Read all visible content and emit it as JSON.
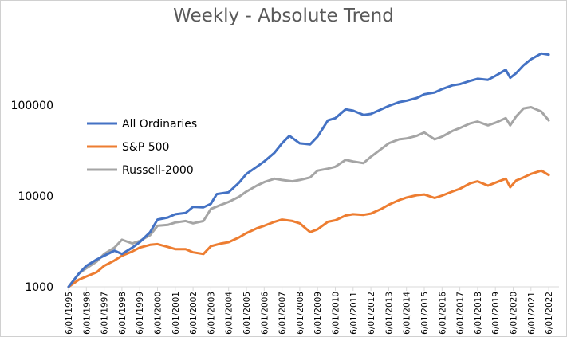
{
  "chart_data": {
    "type": "line",
    "title": "Weekly - Absolute Trend",
    "xlabel": "",
    "ylabel": "",
    "y_scale": "log",
    "ylim": [
      1000,
      400000
    ],
    "y_ticks": [
      {
        "value": 1000,
        "label": "1000"
      },
      {
        "value": 10000,
        "label": "10000"
      },
      {
        "value": 100000,
        "label": "100000"
      }
    ],
    "x_ticks": [
      "6/01/1995",
      "6/01/1996",
      "6/01/1997",
      "6/01/1998",
      "6/01/1999",
      "6/01/2000",
      "6/01/2001",
      "6/01/2002",
      "6/01/2003",
      "6/01/2004",
      "6/01/2005",
      "6/01/2006",
      "6/01/2007",
      "6/01/2008",
      "6/01/2009",
      "6/01/2010",
      "6/01/2011",
      "6/01/2012",
      "6/01/2013",
      "6/01/2014",
      "6/01/2015",
      "6/01/2016",
      "6/01/2017",
      "6/01/2018",
      "6/01/2019",
      "6/01/2020",
      "6/01/2021",
      "6/01/2022"
    ],
    "grid": false,
    "legend_position": "upper-left inside plot",
    "series": [
      {
        "name": "All Ordinaries",
        "color": "#4472c4",
        "points": [
          [
            "1995-06",
            1000
          ],
          [
            "1996-01",
            1400
          ],
          [
            "1996-06",
            1700
          ],
          [
            "1997-01",
            2000
          ],
          [
            "1997-06",
            2200
          ],
          [
            "1998-01",
            2500
          ],
          [
            "1998-06",
            2300
          ],
          [
            "1999-01",
            2700
          ],
          [
            "1999-06",
            3100
          ],
          [
            "2000-01",
            4000
          ],
          [
            "2000-06",
            5500
          ],
          [
            "2001-01",
            5800
          ],
          [
            "2001-06",
            6300
          ],
          [
            "2002-01",
            6500
          ],
          [
            "2002-06",
            7600
          ],
          [
            "2003-01",
            7500
          ],
          [
            "2003-06",
            8200
          ],
          [
            "2003-10",
            10500
          ],
          [
            "2004-06",
            11000
          ],
          [
            "2005-01",
            14000
          ],
          [
            "2005-06",
            17500
          ],
          [
            "2006-01",
            21000
          ],
          [
            "2006-06",
            24000
          ],
          [
            "2007-01",
            30000
          ],
          [
            "2007-06",
            38000
          ],
          [
            "2007-11",
            46000
          ],
          [
            "2008-06",
            38000
          ],
          [
            "2009-01",
            37000
          ],
          [
            "2009-06",
            45000
          ],
          [
            "2010-01",
            68000
          ],
          [
            "2010-06",
            72000
          ],
          [
            "2011-01",
            90000
          ],
          [
            "2011-06",
            87000
          ],
          [
            "2012-01",
            78000
          ],
          [
            "2012-06",
            80000
          ],
          [
            "2013-01",
            90000
          ],
          [
            "2013-06",
            98000
          ],
          [
            "2014-01",
            108000
          ],
          [
            "2014-06",
            112000
          ],
          [
            "2015-01",
            120000
          ],
          [
            "2015-06",
            132000
          ],
          [
            "2016-01",
            138000
          ],
          [
            "2016-06",
            150000
          ],
          [
            "2017-01",
            165000
          ],
          [
            "2017-06",
            170000
          ],
          [
            "2018-01",
            185000
          ],
          [
            "2018-06",
            195000
          ],
          [
            "2019-01",
            190000
          ],
          [
            "2019-06",
            210000
          ],
          [
            "2020-01",
            245000
          ],
          [
            "2020-04",
            200000
          ],
          [
            "2020-08",
            225000
          ],
          [
            "2021-01",
            275000
          ],
          [
            "2021-06",
            320000
          ],
          [
            "2022-01",
            370000
          ],
          [
            "2022-06",
            360000
          ]
        ]
      },
      {
        "name": "S&P 500",
        "color": "#ed7d31",
        "points": [
          [
            "1995-06",
            1000
          ],
          [
            "1996-01",
            1200
          ],
          [
            "1996-06",
            1300
          ],
          [
            "1997-01",
            1450
          ],
          [
            "1997-06",
            1700
          ],
          [
            "1998-01",
            1950
          ],
          [
            "1998-06",
            2200
          ],
          [
            "1999-01",
            2450
          ],
          [
            "1999-06",
            2700
          ],
          [
            "2000-01",
            2900
          ],
          [
            "2000-06",
            2950
          ],
          [
            "2001-01",
            2750
          ],
          [
            "2001-06",
            2600
          ],
          [
            "2002-01",
            2600
          ],
          [
            "2002-06",
            2400
          ],
          [
            "2003-01",
            2300
          ],
          [
            "2003-06",
            2800
          ],
          [
            "2004-01",
            3000
          ],
          [
            "2004-06",
            3100
          ],
          [
            "2005-01",
            3500
          ],
          [
            "2005-06",
            3900
          ],
          [
            "2006-01",
            4400
          ],
          [
            "2006-06",
            4700
          ],
          [
            "2007-01",
            5200
          ],
          [
            "2007-06",
            5500
          ],
          [
            "2008-01",
            5300
          ],
          [
            "2008-06",
            5000
          ],
          [
            "2009-01",
            4000
          ],
          [
            "2009-06",
            4300
          ],
          [
            "2010-01",
            5200
          ],
          [
            "2010-06",
            5400
          ],
          [
            "2011-01",
            6100
          ],
          [
            "2011-06",
            6300
          ],
          [
            "2012-01",
            6200
          ],
          [
            "2012-06",
            6400
          ],
          [
            "2013-01",
            7200
          ],
          [
            "2013-06",
            8000
          ],
          [
            "2014-01",
            9000
          ],
          [
            "2014-06",
            9600
          ],
          [
            "2015-01",
            10200
          ],
          [
            "2015-06",
            10400
          ],
          [
            "2016-01",
            9500
          ],
          [
            "2016-06",
            10100
          ],
          [
            "2017-01",
            11200
          ],
          [
            "2017-06",
            12000
          ],
          [
            "2018-01",
            13800
          ],
          [
            "2018-06",
            14500
          ],
          [
            "2019-01",
            13000
          ],
          [
            "2019-06",
            14000
          ],
          [
            "2020-01",
            15500
          ],
          [
            "2020-04",
            12500
          ],
          [
            "2020-08",
            14800
          ],
          [
            "2021-01",
            16000
          ],
          [
            "2021-06",
            17500
          ],
          [
            "2022-01",
            19000
          ],
          [
            "2022-06",
            17000
          ]
        ]
      },
      {
        "name": "Russell-2000",
        "color": "#a5a5a5",
        "points": [
          [
            "1995-06",
            1000
          ],
          [
            "1996-01",
            1400
          ],
          [
            "1996-06",
            1600
          ],
          [
            "1997-01",
            1900
          ],
          [
            "1997-06",
            2300
          ],
          [
            "1998-01",
            2700
          ],
          [
            "1998-06",
            3300
          ],
          [
            "1999-01",
            3000
          ],
          [
            "1999-06",
            3200
          ],
          [
            "2000-01",
            3700
          ],
          [
            "2000-06",
            4700
          ],
          [
            "2001-01",
            4800
          ],
          [
            "2001-06",
            5100
          ],
          [
            "2002-01",
            5300
          ],
          [
            "2002-06",
            5000
          ],
          [
            "2003-01",
            5300
          ],
          [
            "2003-06",
            7200
          ],
          [
            "2004-01",
            8000
          ],
          [
            "2004-06",
            8600
          ],
          [
            "2005-01",
            9800
          ],
          [
            "2005-06",
            11200
          ],
          [
            "2006-01",
            13000
          ],
          [
            "2006-06",
            14200
          ],
          [
            "2007-01",
            15500
          ],
          [
            "2007-06",
            15000
          ],
          [
            "2008-01",
            14500
          ],
          [
            "2008-06",
            15000
          ],
          [
            "2009-01",
            16000
          ],
          [
            "2009-06",
            19000
          ],
          [
            "2010-01",
            20000
          ],
          [
            "2010-06",
            21000
          ],
          [
            "2011-01",
            25000
          ],
          [
            "2011-06",
            24000
          ],
          [
            "2012-01",
            23000
          ],
          [
            "2012-06",
            27000
          ],
          [
            "2013-01",
            33000
          ],
          [
            "2013-06",
            38000
          ],
          [
            "2014-01",
            42000
          ],
          [
            "2014-06",
            43000
          ],
          [
            "2015-01",
            46000
          ],
          [
            "2015-06",
            50000
          ],
          [
            "2016-01",
            42000
          ],
          [
            "2016-06",
            45000
          ],
          [
            "2017-01",
            52000
          ],
          [
            "2017-06",
            56000
          ],
          [
            "2018-01",
            63000
          ],
          [
            "2018-06",
            66000
          ],
          [
            "2019-01",
            60000
          ],
          [
            "2019-06",
            64000
          ],
          [
            "2020-01",
            72000
          ],
          [
            "2020-04",
            60000
          ],
          [
            "2020-08",
            75000
          ],
          [
            "2021-01",
            92000
          ],
          [
            "2021-06",
            95000
          ],
          [
            "2022-01",
            85000
          ],
          [
            "2022-06",
            68000
          ]
        ]
      }
    ]
  }
}
